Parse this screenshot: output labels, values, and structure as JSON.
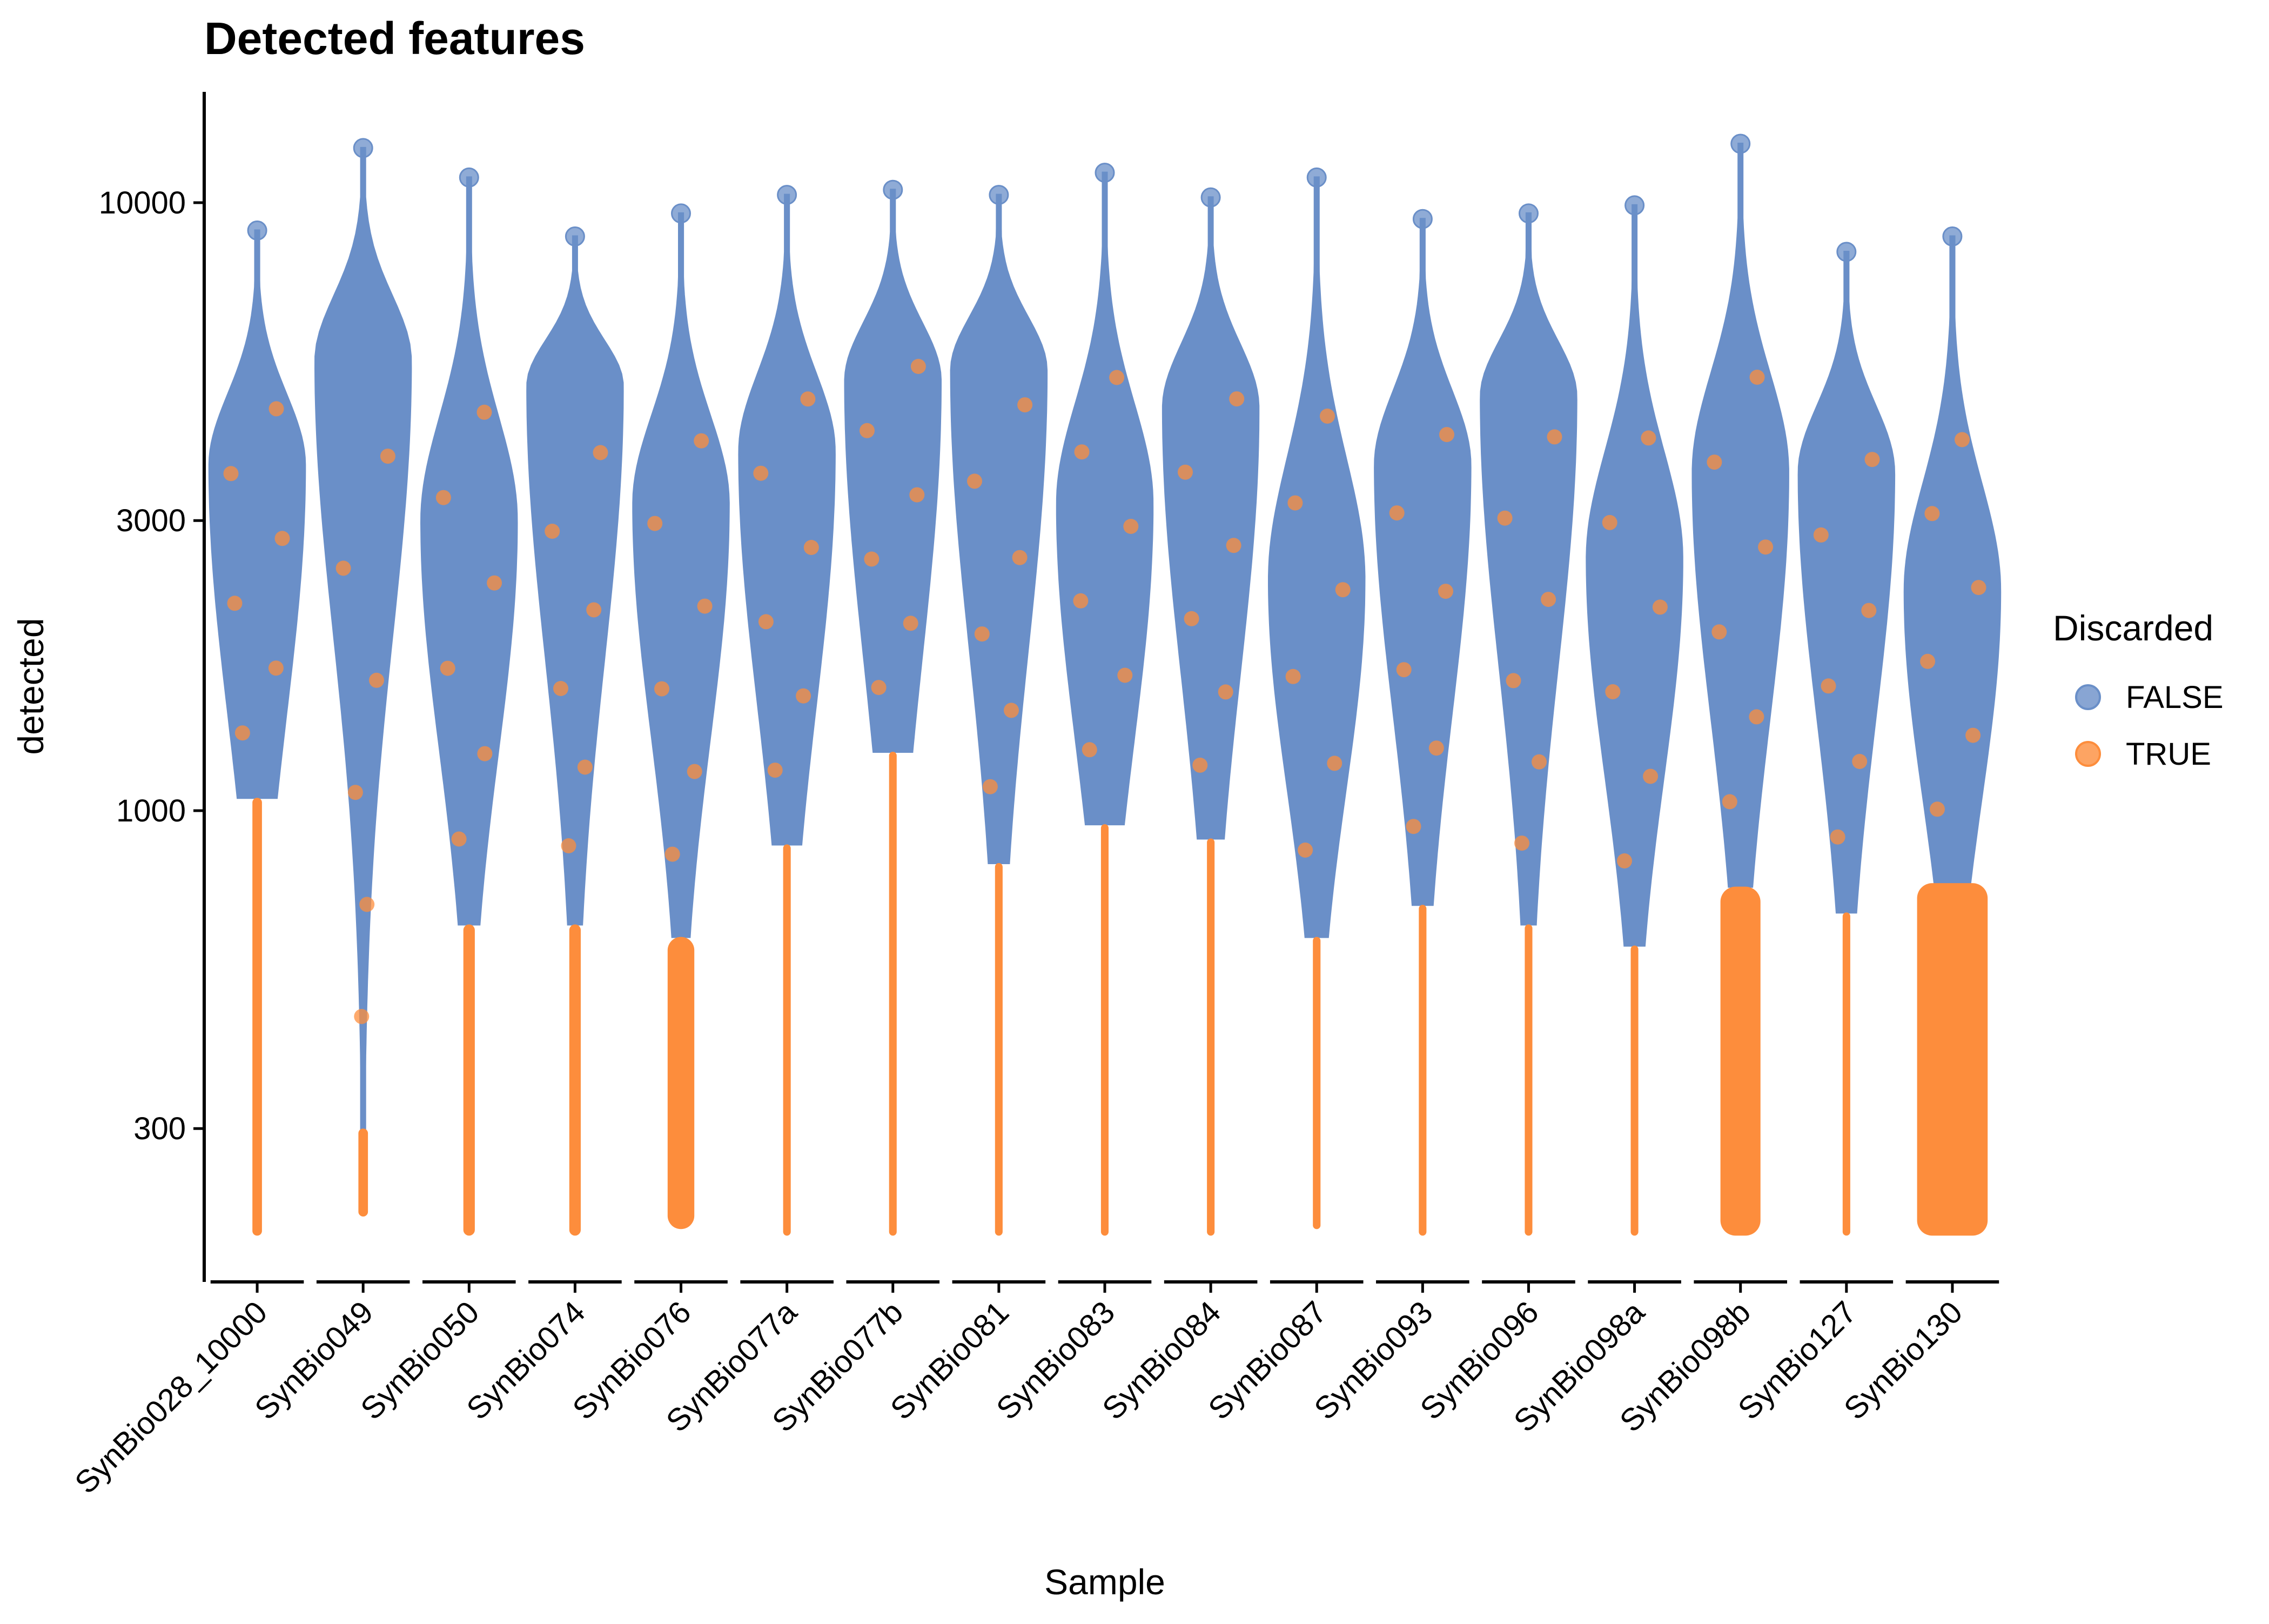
{
  "chart_data": {
    "type": "violin",
    "title": "Detected features",
    "xlabel": "Sample",
    "ylabel": "detected",
    "y_scale": "log10",
    "ylim": [
      170,
      15000
    ],
    "y_ticks": [
      300,
      1000,
      3000,
      10000
    ],
    "y_tick_labels": [
      "300",
      "1000",
      "3000",
      "10000"
    ],
    "grid": false,
    "legend": {
      "title": "Discarded",
      "placement": "right",
      "entries": [
        {
          "label": "FALSE",
          "color": "#6a8fc8"
        },
        {
          "label": "TRUE",
          "color": "#fd8d3c"
        }
      ]
    },
    "colors": {
      "false": "#6a8fc8",
      "true": "#fd8d3c",
      "axis": "#000000"
    },
    "categories": [
      "SynBio028_10000",
      "SynBio049",
      "SynBio050",
      "SynBio074",
      "SynBio076",
      "SynBio077a",
      "SynBio077b",
      "SynBio081",
      "SynBio083",
      "SynBio084",
      "SynBio087",
      "SynBio093",
      "SynBio096",
      "SynBio098a",
      "SynBio098b",
      "SynBio127",
      "SynBio130"
    ],
    "series": [
      {
        "sample": "SynBio028_10000",
        "min": 200,
        "max": 9000,
        "discard_threshold": 1050,
        "peak": 3700,
        "true_width": 0.1
      },
      {
        "sample": "SynBio049",
        "min": 215,
        "max": 12300,
        "discard_threshold": 300,
        "peak": 5500,
        "true_width": 0.1
      },
      {
        "sample": "SynBio050",
        "min": 200,
        "max": 11000,
        "discard_threshold": 650,
        "peak": 3000,
        "true_width": 0.12
      },
      {
        "sample": "SynBio074",
        "min": 200,
        "max": 8800,
        "discard_threshold": 650,
        "peak": 5000,
        "true_width": 0.12
      },
      {
        "sample": "SynBio076",
        "min": 205,
        "max": 9600,
        "discard_threshold": 620,
        "peak": 3200,
        "true_width": 0.28
      },
      {
        "sample": "SynBio077a",
        "min": 200,
        "max": 10300,
        "discard_threshold": 880,
        "peak": 3900,
        "true_width": 0.08
      },
      {
        "sample": "SynBio077b",
        "min": 200,
        "max": 10500,
        "discard_threshold": 1250,
        "peak": 5100,
        "true_width": 0.08
      },
      {
        "sample": "SynBio081",
        "min": 200,
        "max": 10300,
        "discard_threshold": 820,
        "peak": 5300,
        "true_width": 0.08
      },
      {
        "sample": "SynBio083",
        "min": 200,
        "max": 11200,
        "discard_threshold": 950,
        "peak": 3200,
        "true_width": 0.08
      },
      {
        "sample": "SynBio084",
        "min": 200,
        "max": 10200,
        "discard_threshold": 900,
        "peak": 4600,
        "true_width": 0.08
      },
      {
        "sample": "SynBio087",
        "min": 205,
        "max": 11000,
        "discard_threshold": 620,
        "peak": 2400,
        "true_width": 0.08
      },
      {
        "sample": "SynBio093",
        "min": 200,
        "max": 9400,
        "discard_threshold": 700,
        "peak": 3700,
        "true_width": 0.08
      },
      {
        "sample": "SynBio096",
        "min": 200,
        "max": 9600,
        "discard_threshold": 650,
        "peak": 4800,
        "true_width": 0.08
      },
      {
        "sample": "SynBio098a",
        "min": 200,
        "max": 9900,
        "discard_threshold": 600,
        "peak": 2600,
        "true_width": 0.08
      },
      {
        "sample": "SynBio098b",
        "min": 200,
        "max": 12500,
        "discard_threshold": 750,
        "peak": 3600,
        "true_width": 0.42
      },
      {
        "sample": "SynBio127",
        "min": 200,
        "max": 8300,
        "discard_threshold": 680,
        "peak": 3600,
        "true_width": 0.08
      },
      {
        "sample": "SynBio130",
        "min": 200,
        "max": 8800,
        "discard_threshold": 760,
        "peak": 2300,
        "true_width": 0.74
      }
    ]
  }
}
